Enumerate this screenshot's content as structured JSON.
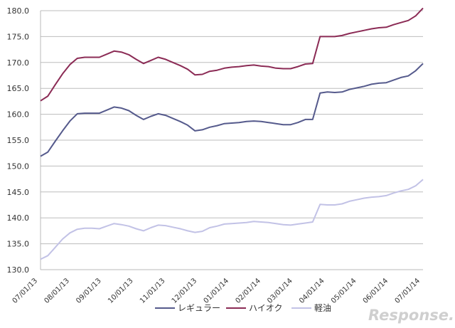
{
  "chart_data": {
    "type": "line",
    "title": "",
    "xlabel": "",
    "ylabel": "",
    "ylim": [
      130,
      180
    ],
    "y_ticks": [
      "130.0",
      "135.0",
      "140.0",
      "145.0",
      "150.0",
      "155.0",
      "160.0",
      "165.0",
      "170.0",
      "175.0",
      "180.0"
    ],
    "x_tick_labels": [
      "07/01/13",
      "08/01/13",
      "09/01/13",
      "10/01/13",
      "11/01/13",
      "12/01/13",
      "01/01/14",
      "02/01/14",
      "03/01/14",
      "04/01/14",
      "05/01/14",
      "06/01/14",
      "07/01/14"
    ],
    "grid": "horizontal",
    "legend_position": "bottom",
    "series": [
      {
        "name": "レギュラー",
        "color": "#555a8c",
        "values": [
          151.9,
          152.7,
          154.8,
          156.8,
          158.7,
          160.1,
          160.2,
          160.2,
          160.2,
          160.8,
          161.4,
          161.2,
          160.7,
          159.8,
          159.0,
          159.6,
          160.1,
          159.8,
          159.2,
          158.6,
          157.9,
          156.8,
          157.0,
          157.5,
          157.8,
          158.2,
          158.3,
          158.4,
          158.6,
          158.7,
          158.6,
          158.4,
          158.2,
          158.0,
          158.0,
          158.4,
          159.0,
          159.0,
          164.1,
          164.3,
          164.2,
          164.3,
          164.8,
          165.1,
          165.4,
          165.8,
          166.0,
          166.1,
          166.6,
          167.1,
          167.4,
          168.4,
          169.8
        ]
      },
      {
        "name": "ハイオク",
        "color": "#8b2b55",
        "values": [
          162.6,
          163.5,
          165.7,
          167.8,
          169.6,
          170.8,
          171.0,
          171.0,
          171.0,
          171.6,
          172.2,
          172.0,
          171.5,
          170.6,
          169.8,
          170.4,
          171.0,
          170.6,
          170.0,
          169.4,
          168.7,
          167.6,
          167.7,
          168.3,
          168.5,
          168.9,
          169.1,
          169.2,
          169.4,
          169.5,
          169.3,
          169.2,
          168.9,
          168.8,
          168.8,
          169.2,
          169.7,
          169.8,
          175.0,
          175.0,
          175.0,
          175.2,
          175.6,
          175.9,
          176.2,
          176.5,
          176.7,
          176.8,
          177.3,
          177.7,
          178.1,
          179.0,
          180.5
        ]
      },
      {
        "name": "軽油",
        "color": "#c2c2e6",
        "values": [
          132.0,
          132.7,
          134.3,
          135.9,
          137.1,
          137.8,
          138.0,
          138.0,
          137.9,
          138.4,
          138.9,
          138.7,
          138.4,
          137.9,
          137.5,
          138.1,
          138.6,
          138.5,
          138.2,
          137.9,
          137.5,
          137.2,
          137.4,
          138.1,
          138.4,
          138.8,
          138.9,
          139.0,
          139.1,
          139.3,
          139.2,
          139.1,
          138.9,
          138.7,
          138.6,
          138.8,
          139.0,
          139.2,
          142.6,
          142.5,
          142.5,
          142.7,
          143.2,
          143.5,
          143.8,
          144.0,
          144.1,
          144.3,
          144.8,
          145.2,
          145.5,
          146.2,
          147.4
        ]
      }
    ]
  },
  "watermark": "Response."
}
